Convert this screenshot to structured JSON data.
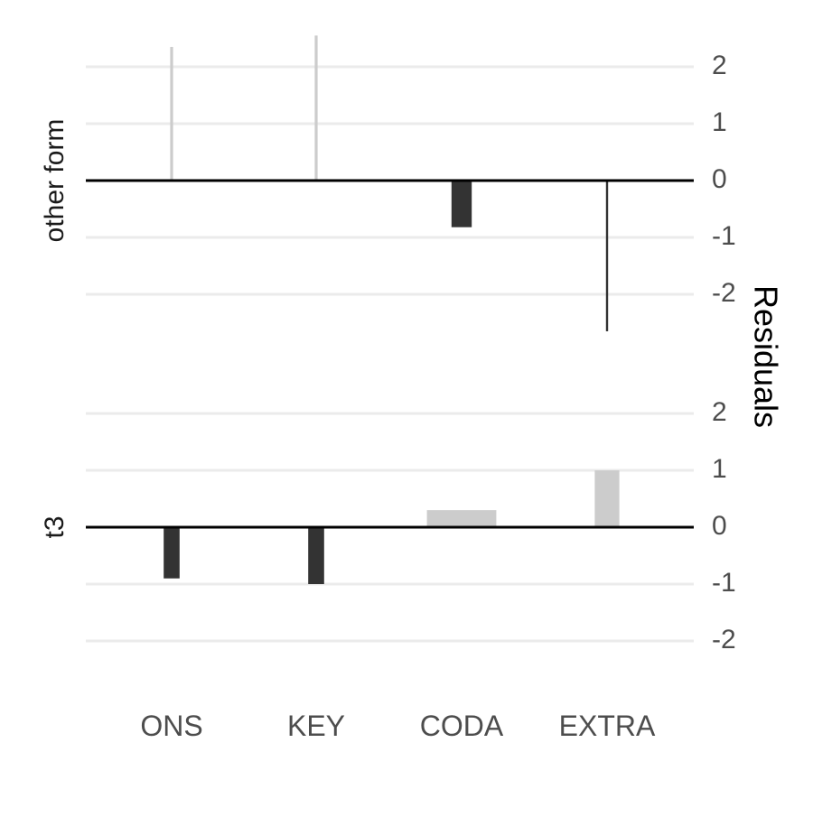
{
  "chart_data": {
    "type": "bar",
    "categories": [
      "ONS",
      "KEY",
      "CODA",
      "EXTRA"
    ],
    "ylabel": "Residuals",
    "ylim": [
      -2.5,
      2.5
    ],
    "yticks": [
      2,
      1,
      0,
      -1,
      -2
    ],
    "ytick_labels": [
      "2",
      "1",
      "0",
      "-1",
      "-2"
    ],
    "grid": true,
    "y_axis_position": "right",
    "colors": {
      "negative": "#333333",
      "positive": "#cccccc",
      "gridline": "#ebebeb",
      "zero_line": "#000000"
    },
    "panels": [
      {
        "label": "other form",
        "values": [
          2.35,
          2.55,
          -0.82,
          -2.65
        ],
        "bar_width_weights": [
          0.02,
          0.02,
          0.14,
          0.015
        ]
      },
      {
        "label": "t3",
        "values": [
          -0.9,
          -1.0,
          0.3,
          1.0
        ],
        "bar_width_weights": [
          0.11,
          0.11,
          0.48,
          0.17
        ]
      }
    ]
  }
}
